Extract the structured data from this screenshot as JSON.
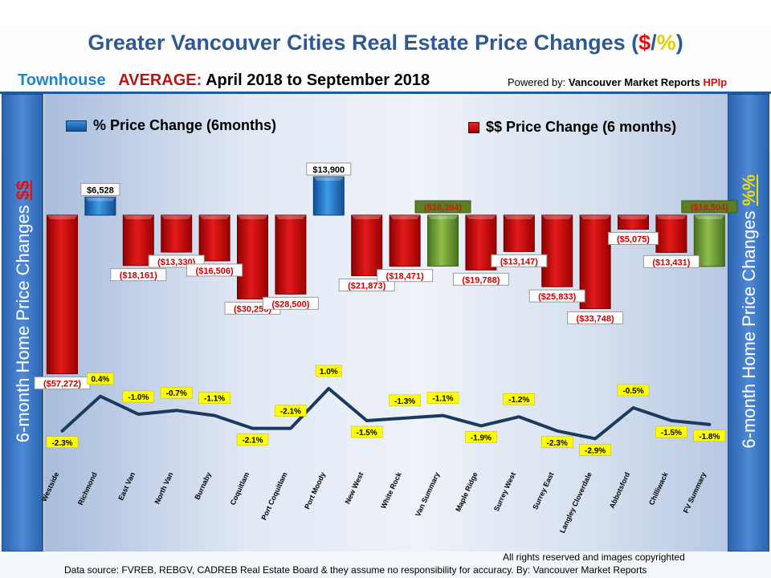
{
  "title": {
    "main": "Greater Vancouver Cities Real Estate Price Changes (",
    "sym_dollar": "$",
    "sym_slash": "/",
    "sym_pct": "%",
    "close": ")"
  },
  "subtitle": {
    "type": "Townhouse",
    "average": "AVERAGE:",
    "period": "April 2018 to September 2018"
  },
  "powered": {
    "label": "Powered by:",
    "brand": "Vancouver Market Reports",
    "hpi": "HPIp"
  },
  "legend": {
    "percent": "% Price Change (6months)",
    "dollar": "$$ Price Change (6 months)"
  },
  "sidebar": {
    "left_text": "6-month Home Price Changes ",
    "left_mark": "$$",
    "right_text": "6-month Home Price  Changes ",
    "right_mark": "%%"
  },
  "footer": {
    "line1": "All rights reserved and  images copyrighted",
    "line2": "Data  source: FVREB, REBGV, CADREB Real Estate Board & they assume no responsibility for accuracy. By: Vancouver  Market Reports"
  },
  "colors": {
    "negative": "#d40000",
    "positive": "#1f72c4",
    "summary": "#6f9a2f",
    "line": "#1b3a5f",
    "pct_label_bg": "#ffff00"
  },
  "chart_data": {
    "type": "bar",
    "categories": [
      "Westside",
      "Richmond",
      "East Van",
      "North Van",
      "Burnaby",
      "Coquitlam",
      "Port Coquitlam",
      "Port Moody",
      "New West",
      "White Rock",
      "Van Summary",
      "Maple Ridge",
      "Surrey West",
      "Surrey East",
      "Langley Cloverdale",
      "Abbotsford",
      "Chilliwack",
      "FV Summary"
    ],
    "series": [
      {
        "name": "$$ Price Change (6 months)",
        "type": "bar",
        "values": [
          -57272,
          6528,
          -18161,
          -13330,
          -16506,
          -30256,
          -28500,
          13900,
          -21873,
          -18471,
          -18394,
          -19788,
          -13147,
          -25833,
          -33748,
          -5075,
          -13431,
          -18504
        ],
        "labels": [
          "($57,272)",
          "$6,528",
          "($18,161)",
          "($13,330)",
          "($16,506)",
          "($30,256)",
          "($28,500)",
          "$13,900",
          "($21,873)",
          "($18,471)",
          "($18,394)",
          "($19,788)",
          "($13,147)",
          "($25,833)",
          "($33,748)",
          "($5,075)",
          "($13,431)",
          "($18,504)"
        ]
      },
      {
        "name": "% Price Change (6months)",
        "type": "line",
        "values": [
          -2.3,
          0.4,
          -1.0,
          -0.7,
          -1.1,
          -2.1,
          -2.1,
          1.0,
          -1.5,
          -1.3,
          -1.1,
          -1.9,
          -1.2,
          -2.3,
          -2.9,
          -0.5,
          -1.5,
          -1.8
        ],
        "labels": [
          "-2.3%",
          "0.4%",
          "-1.0%",
          "-0.7%",
          "-1.1%",
          "-2.1%",
          "-2.1%",
          "1.0%",
          "-1.5%",
          "-1.3%",
          "-1.1%",
          "-1.9%",
          "-1.2%",
          "-2.3%",
          "-2.9%",
          "-0.5%",
          "-1.5%",
          "-1.8%"
        ]
      }
    ],
    "summary_categories": [
      "Van Summary",
      "FV Summary"
    ],
    "legend_position": "top",
    "grid": false
  }
}
